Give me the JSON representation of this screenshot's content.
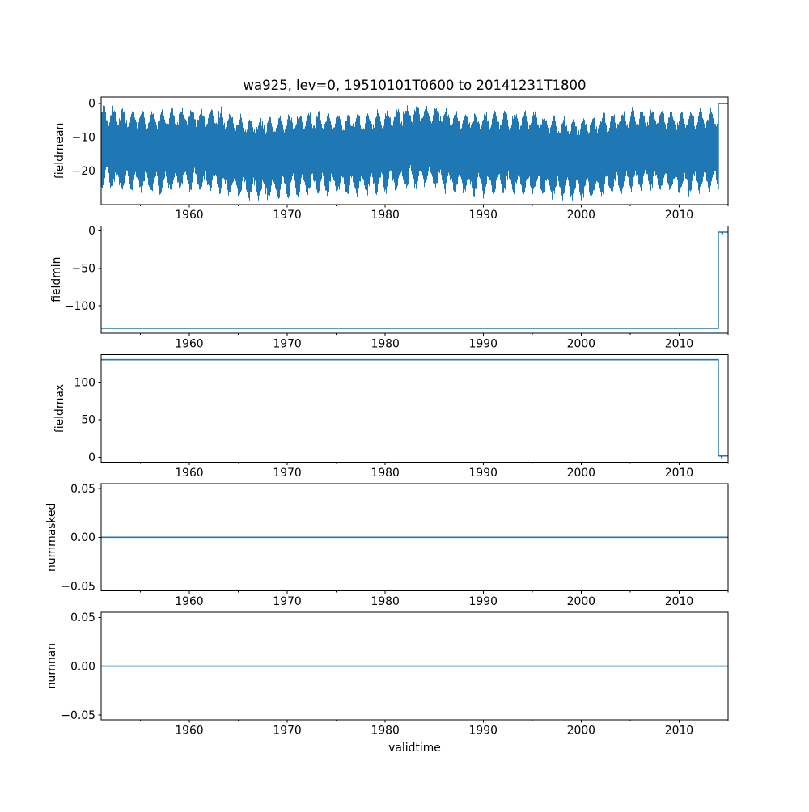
{
  "figure": {
    "title": "wa925, lev=0, 19510101T0600 to 20141231T1800",
    "line_color": "#1f77b4",
    "axis_color": "#000000",
    "background": "#ffffff"
  },
  "x_axis": {
    "label": "validtime",
    "lim": [
      1951.0,
      2015.0
    ],
    "major_ticks": [
      {
        "value": 1960,
        "label": "1960"
      },
      {
        "value": 1970,
        "label": "1970"
      },
      {
        "value": 1980,
        "label": "1980"
      },
      {
        "value": 1990,
        "label": "1990"
      },
      {
        "value": 2000,
        "label": "2000"
      },
      {
        "value": 2010,
        "label": "2010"
      }
    ],
    "minor_ticks": [
      1955,
      1965,
      1975,
      1985,
      1995,
      2005,
      2015
    ]
  },
  "chart_data": [
    {
      "type": "line",
      "ylabel": "fieldmean",
      "ylim": [
        -29.9,
        1.9
      ],
      "yticks": [
        {
          "value": 0,
          "label": "0"
        },
        {
          "value": -10,
          "label": "−10"
        },
        {
          "value": -20,
          "label": "−20"
        }
      ],
      "series": [
        {
          "name": "fieldmean",
          "style": "noisy_band",
          "x_start": 1951.0,
          "x_end": 2014.0,
          "band_top_typical": [
            -8.5,
            -1.0
          ],
          "band_bottom_typical": [
            -28.6,
            -20.0
          ],
          "extreme_max": 0.2,
          "extreme_min": -28.7,
          "annual_period_years": 1.0,
          "after_step_points": [
            [
              2014.0,
              0.0
            ],
            [
              2015.0,
              0.0
            ]
          ]
        }
      ]
    },
    {
      "type": "line",
      "ylabel": "fieldmin",
      "ylim": [
        -136.5,
        6.5
      ],
      "yticks": [
        {
          "value": 0,
          "label": "0"
        },
        {
          "value": -50,
          "label": "−50"
        },
        {
          "value": -100,
          "label": "−100"
        }
      ],
      "series": [
        {
          "name": "fieldmin",
          "style": "steps",
          "points": [
            [
              1951.0,
              -130.0
            ],
            [
              2014.0,
              -130.0
            ],
            [
              2014.0,
              -1.8
            ],
            [
              2014.36,
              -1.8
            ],
            [
              2014.4,
              -4.8
            ],
            [
              2014.46,
              -1.8
            ],
            [
              2015.0,
              -1.8
            ]
          ]
        }
      ]
    },
    {
      "type": "line",
      "ylabel": "fieldmax",
      "ylim": [
        -6.5,
        136.5
      ],
      "yticks": [
        {
          "value": 0,
          "label": "0"
        },
        {
          "value": 50,
          "label": "50"
        },
        {
          "value": 100,
          "label": "100"
        }
      ],
      "series": [
        {
          "name": "fieldmax",
          "style": "steps",
          "points": [
            [
              1951.0,
              130.0
            ],
            [
              2014.0,
              130.0
            ],
            [
              2014.0,
              1.8
            ],
            [
              2014.28,
              1.8
            ],
            [
              2014.34,
              -0.4
            ],
            [
              2014.44,
              1.8
            ],
            [
              2015.0,
              1.8
            ]
          ]
        }
      ]
    },
    {
      "type": "line",
      "ylabel": "nummasked",
      "ylim": [
        -0.055,
        0.055
      ],
      "yticks": [
        {
          "value": 0.05,
          "label": "0.05"
        },
        {
          "value": 0.0,
          "label": "0.00"
        },
        {
          "value": -0.05,
          "label": "−0.05"
        }
      ],
      "series": [
        {
          "name": "nummasked",
          "style": "flat",
          "points": [
            [
              1951.0,
              0.0
            ],
            [
              2015.0,
              0.0
            ]
          ]
        }
      ]
    },
    {
      "type": "line",
      "ylabel": "numnan",
      "ylim": [
        -0.055,
        0.055
      ],
      "yticks": [
        {
          "value": 0.05,
          "label": "0.05"
        },
        {
          "value": 0.0,
          "label": "0.00"
        },
        {
          "value": -0.05,
          "label": "−0.05"
        }
      ],
      "series": [
        {
          "name": "numnan",
          "style": "flat",
          "points": [
            [
              1951.0,
              0.0
            ],
            [
              2015.0,
              0.0
            ]
          ]
        }
      ]
    }
  ]
}
